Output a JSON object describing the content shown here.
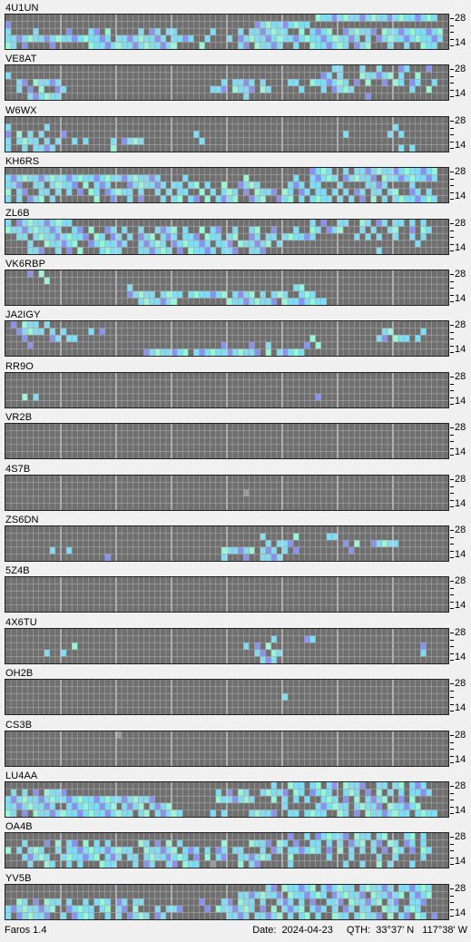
{
  "app": {
    "name": "Faros 1.4"
  },
  "status_bar": {
    "date_label": "Date:",
    "date_value": "2024-04-23",
    "qth_label": "QTH:",
    "qth_lat": "33°37' N",
    "qth_lon": "117°38' W"
  },
  "band_scale": {
    "top_label": "28",
    "bottom_label": "14"
  },
  "colors": {
    "grid_background": "#6f6f6f",
    "grid_line": "#a8a8a8",
    "hour_line": "#d8d8d8",
    "signal_weak": "#8a92f0",
    "signal_medium": "#7fdcf2",
    "signal_strong": "#98f6d6",
    "signal_faint": "#9a9a9a"
  },
  "beacons": [
    {
      "callsign": "4U1UN",
      "rows": [
        "........................................................######################",
        "#............................................##########........................",
        "#....#.....#...##.#.....#.##.##......#....#.#######..#.####..######.###########",
        "###################.#########.####..#...#.######################.#.############",
        "##.#....#......################....#......##.#####..#..#######.###...#..#..###"
      ]
    },
    {
      "callsign": "VE8AT",
      "rows": [
        "...........................................................##...#..#...##...#.",
        "#........................................................##.#...######.#..#...",
        "..##.#####.............................#.####.#....##..#######.#.#..#.##.##..#",
        "..#.#.#..##..........................###.####.##.....#...#.####..........#..#.",
        "....######.................................#.....................#............"
      ]
    },
    {
      "callsign": "W6WX",
      "rows": [
        "..............................................................................",
        "#......#..............................................................#.......",
        "#.#.#.#...#.......................#..........................#.......#.#......",
        "#.####.#.#..#.#....#.####..........#...........................................",
        "#..#.####..........#...................................................#.#....."
      ]
    },
    {
      "callsign": "KH6RS",
      "rows": [
        ".......................................................####..#.###############",
        "############################....#..........#........#..#####.######.##########",
        "###..##.#####.#.###...#######.##.##.#..#..####.....###.##...#....####....#....",
        "#.##..##.#.#.#.##.#####.#..#.#.##..#.#.###.#.####.##.##.##.#.#.##.##.##..##.#.",
        "#.#.###.#.......#..#..#.#...#.##.##.#.####..###..###.#.####.#.#.#.#.#.########."
      ]
    },
    {
      "callsign": "ZL6B",
      "rows": [
        "#.##########...........................................#.#..##..##.##.##.#.#.",
        "##########..##.#..##.#..#..####.#..#.##..#..##..#...#..##.###...#.#..##..#.##.",
        "..##.##########.##.##.#.###.###.###.###.##..##.##.######.......#.#.#..#..#.#.",
        "....#..######..#######..#####.#######.###.######.#........................#...",
        "....###..#.#.#...####...######.#.#####.###..###....................#.........."
      ]
    },
    {
      "callsign": "VK6RBP",
      "rows": [
        "....#.#.......................................................................",
        ".......#.......................................................................",
        "......................#.............................##.....................",
        "......................#####.####.#######.####.#.###..###..........................",
        "........................#######.........#########.########..................."
      ]
    },
    {
      "callsign": "JA2IGY",
      "rows": [
        ".#.###.#.......................................................................",
        "..#####.#.#....#.#..................................................##.....#.",
        "...#....##.##..........................................#...........##.###.#.",
        "....#..................................#....#..#......#.#..........................",
        ".........................########.############.#.#####..............."
      ]
    },
    {
      "callsign": "RR9O",
      "rows": [
        "..............................................................................",
        "..............................................................................",
        "..............................................................................",
        "...#.#..................................................#.....................",
        ".............................................................................."
      ]
    },
    {
      "callsign": "VR2B",
      "rows": [
        "..............................................................................",
        "..............................................................................",
        ".............................................................................",
        "..............................................................................",
        ".............................................................................."
      ]
    },
    {
      "callsign": "4S7B",
      "rows": [
        "..............................................................................",
        "..............................................................................",
        "...........................................f..................................",
        "..............................................................................",
        ".............................................................................."
      ]
    },
    {
      "callsign": "ZS6DN",
      "rows": [
        "..............................................................................",
        "..............................................#.....#.....##..................",
        "...............................................#.###.........#.#..#####.......",
        "........#..#...........................######.###.#.#.........#.............",
        "..................#....................#...#..####............................."
      ]
    },
    {
      "callsign": "5Z4B",
      "rows": [
        "..............................................................................",
        "..............................................................................",
        "..............................................................................",
        "..............................................................................",
        ".............................................................................."
      ]
    },
    {
      "callsign": "4X6TU",
      "rows": [
        "..............................................................................",
        "................................................#.....##.......................",
        "............#..............................#.#.#...........................#....",
        ".......#..#..................................##.##.........................#....",
        "..............................................###.............................."
      ]
    },
    {
      "callsign": "OH2B",
      "rows": [
        "..............................................................................",
        "..............................................................................",
        "..................................................#...........................",
        "..............................................................................",
        ".............................................................................."
      ]
    },
    {
      "callsign": "CS3B",
      "rows": [
        "....................f.........................................................",
        "..............................................................................",
        "..............................................................................",
        "..............................................................................",
        ".............................................................................."
      ]
    },
    {
      "callsign": "LU4AA",
      "rows": [
        "................................................#..###.##.##.####..##.##.###.",
        ".#.#.#.####...........................#.#.##..#####.##.####..###.#.#.#.#.####",
        "###########################...........#######...#.#.#.#..###.#.#.####..#.#...",
        "#########..#########.####.####....................#.....######.#####.######...",
        "##.#.##################.##.#####.....#.#....#####..##.####..##.#.########.####"
      ]
    },
    {
      "callsign": "OA4B",
      "rows": [
        "...................................................#..#.######.###.##...##.#.",
        "...#...#.#.##.#.#.#.....##.#.#.#.......#....####.##.#..##.#.#.###.##.##.##.#.",
        "#.#.###..#.############..######.###.#.##.##...#.##.######.#.#.#.#.#.#.##.#.##",
        "...#####..#######.###.##.########.#.#.##..######...#......#...#....#..#....#..",
        "....#..##..#.#...###...#.##..##.###..f....#.##.....#.........#..#..#.#...#...."
      ]
    },
    {
      "callsign": "YV5B",
      "rows": [
        "...............................................##.######.######.######.######",
        "..........................................########.#######.######.######.####",
        "..##.#.###.#..#.###.##.##..........#...##.###.#..###.#.#..###.######.##..###.",
        "#########..#####.##.##.#...#.###....#.#######.#.#.####.###.#.##.##..###.###..",
        "#.######..#.####..#.#.####.##...........####.#####.#.##.#..###.#####.#.##.##.#"
      ]
    }
  ]
}
